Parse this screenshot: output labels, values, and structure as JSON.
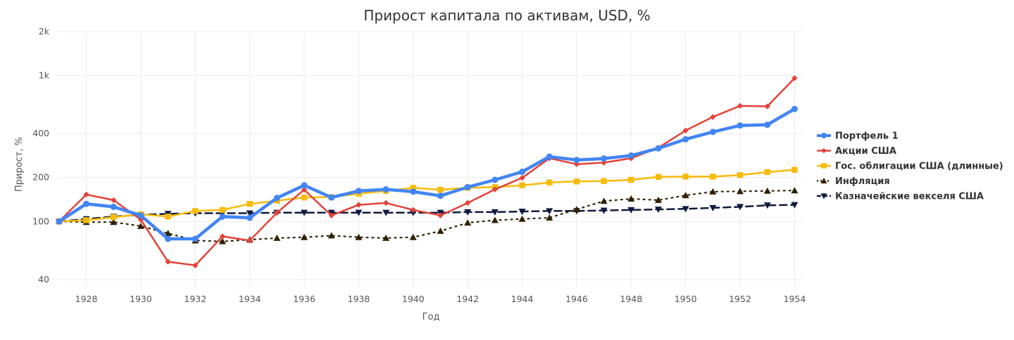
{
  "chart_data": {
    "type": "line",
    "title": "Прирост капитала по активам, USD, %",
    "xlabel": "Год",
    "ylabel": "Прирост, %",
    "y_scale": "log",
    "ylim": [
      35,
      2000
    ],
    "xlim": [
      1926.9,
      1954.3
    ],
    "x_ticks": [
      1928,
      1930,
      1932,
      1934,
      1936,
      1938,
      1940,
      1942,
      1944,
      1946,
      1948,
      1950,
      1952,
      1954
    ],
    "x_tick_labels": [
      "1928",
      "1930",
      "1932",
      "1934",
      "1936",
      "1938",
      "1940",
      "1942",
      "1944",
      "1946",
      "1948",
      "1950",
      "1952",
      "1954"
    ],
    "y_ticks": [
      40,
      100,
      200,
      400,
      1000,
      2000
    ],
    "y_tick_labels": [
      "40",
      "100",
      "200",
      "400",
      "1k",
      "2k"
    ],
    "grid": true,
    "legend_position": "right",
    "x": [
      1927,
      1928,
      1929,
      1930,
      1931,
      1932,
      1933,
      1934,
      1935,
      1936,
      1937,
      1938,
      1939,
      1940,
      1941,
      1942,
      1943,
      1944,
      1945,
      1946,
      1947,
      1948,
      1949,
      1950,
      1951,
      1952,
      1953,
      1954
    ],
    "series": [
      {
        "name": "Портфель 1",
        "color": "#4285f4",
        "marker": "circle",
        "dash": "solid",
        "values": [
          100,
          132,
          126,
          110,
          76,
          76,
          108,
          106,
          145,
          177,
          146,
          162,
          166,
          160,
          150,
          172,
          193,
          219,
          278,
          264,
          270,
          283,
          317,
          366,
          411,
          455,
          460,
          590
        ]
      },
      {
        "name": "Акции США",
        "color": "#e2433b",
        "marker": "diamond",
        "dash": "solid",
        "values": [
          100,
          153,
          140,
          103,
          53,
          50,
          79,
          74,
          115,
          165,
          110,
          130,
          134,
          120,
          110,
          134,
          166,
          199,
          271,
          247,
          253,
          271,
          320,
          420,
          520,
          620,
          615,
          960
        ]
      },
      {
        "name": "Гос. облигации США (длинные)",
        "color": "#f8bb0b",
        "marker": "square",
        "dash": "solid",
        "values": [
          100,
          102,
          107,
          112,
          108,
          118,
          120,
          132,
          139,
          146,
          147,
          155,
          162,
          170,
          165,
          170,
          172,
          177,
          185,
          188,
          189,
          193,
          202,
          203,
          203,
          208,
          218,
          226
        ]
      },
      {
        "name": "Инфляция",
        "color": "#2f2000",
        "marker": "triangle-up",
        "dash": "dotted",
        "values": [
          100,
          99,
          99,
          93,
          83,
          74,
          73,
          75,
          77,
          78,
          80,
          78,
          77,
          78,
          86,
          98,
          102,
          104,
          106,
          121,
          138,
          143,
          140,
          151,
          160,
          161,
          162,
          163
        ]
      },
      {
        "name": "Казначейские векселя США",
        "color": "#0f1a3d",
        "marker": "triangle-down",
        "dash": "dashed",
        "values": [
          100,
          104,
          108,
          111,
          113,
          114,
          114,
          114,
          115,
          115,
          115,
          115,
          115,
          115,
          115,
          116,
          116,
          117,
          118,
          118,
          119,
          120,
          121,
          122,
          124,
          126,
          129,
          130
        ]
      }
    ]
  }
}
